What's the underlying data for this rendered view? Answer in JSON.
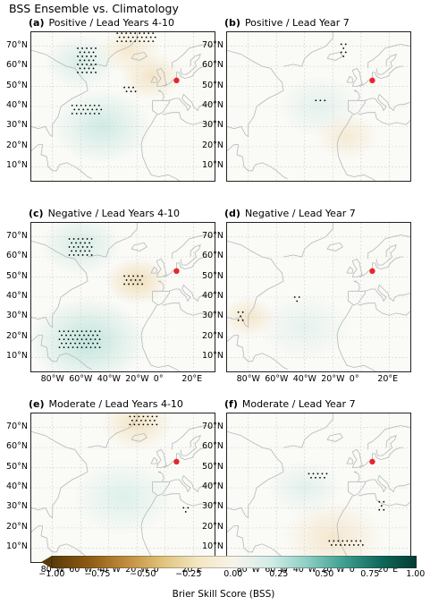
{
  "title": "BSS Ensemble vs. Climatology",
  "marker_color": "#e8252b",
  "panels": [
    {
      "id": "a",
      "letter": "(a)",
      "text": "Positive / Lead Years 4-10",
      "show_lon": false,
      "patches": [
        {
          "lon": -45,
          "lat": 30,
          "r": 22,
          "c": "#cde9e4"
        },
        {
          "lon": -10,
          "lat": 55,
          "r": 14,
          "c": "#f3e3c4"
        },
        {
          "lon": -60,
          "lat": 62,
          "r": 16,
          "c": "#d6ece7"
        },
        {
          "lon": -25,
          "lat": 68,
          "r": 14,
          "c": "#f5e8cc"
        }
      ],
      "dots": [
        {
          "lon": -55,
          "lat": 62,
          "w": 14,
          "h": 14
        },
        {
          "lon": -20,
          "lat": 74,
          "w": 28,
          "h": 5
        },
        {
          "lon": -25,
          "lat": 48,
          "w": 8,
          "h": 3
        },
        {
          "lon": -55,
          "lat": 38,
          "w": 22,
          "h": 5
        }
      ]
    },
    {
      "id": "b",
      "letter": "(b)",
      "text": "Positive / Lead Year 7",
      "show_lon": false,
      "patches": [
        {
          "lon": -30,
          "lat": 40,
          "r": 18,
          "c": "#e2f0ec"
        },
        {
          "lon": -10,
          "lat": 25,
          "r": 14,
          "c": "#f5e9d2"
        }
      ],
      "dots": [
        {
          "lon": -12,
          "lat": 67,
          "w": 4,
          "h": 8
        },
        {
          "lon": -28,
          "lat": 42,
          "w": 8,
          "h": 2
        }
      ]
    },
    {
      "id": "c",
      "letter": "(c)",
      "text": "Negative / Lead Years 4-10",
      "show_lon": true,
      "patches": [
        {
          "lon": -55,
          "lat": 18,
          "r": 26,
          "c": "#bfe3dc"
        },
        {
          "lon": -60,
          "lat": 66,
          "r": 18,
          "c": "#d4ebe5"
        },
        {
          "lon": -20,
          "lat": 48,
          "r": 14,
          "c": "#f0dcb6"
        }
      ],
      "dots": [
        {
          "lon": -60,
          "lat": 64,
          "w": 16,
          "h": 10
        },
        {
          "lon": -22,
          "lat": 48,
          "w": 14,
          "h": 5
        },
        {
          "lon": -60,
          "lat": 18,
          "w": 30,
          "h": 10
        }
      ]
    },
    {
      "id": "d",
      "letter": "(d)",
      "text": "Negative / Lead Year 7",
      "show_lon": true,
      "patches": [
        {
          "lon": -40,
          "lat": 25,
          "r": 20,
          "c": "#e5f1ee"
        },
        {
          "lon": -80,
          "lat": 30,
          "r": 12,
          "c": "#f3e4c8"
        }
      ],
      "dots": [
        {
          "lon": -85,
          "lat": 30,
          "w": 4,
          "h": 5
        },
        {
          "lon": -45,
          "lat": 38,
          "w": 4,
          "h": 4
        }
      ]
    },
    {
      "id": "e",
      "letter": "(e)",
      "text": "Moderate / Lead Years 4-10",
      "show_lon": false,
      "patches": [
        {
          "lon": -30,
          "lat": 35,
          "r": 22,
          "c": "#dbefea"
        },
        {
          "lon": -20,
          "lat": 72,
          "r": 16,
          "c": "#f3e2c0"
        }
      ],
      "dots": [
        {
          "lon": -15,
          "lat": 73,
          "w": 20,
          "h": 5
        },
        {
          "lon": 15,
          "lat": 28,
          "w": 4,
          "h": 4
        }
      ]
    },
    {
      "id": "f",
      "letter": "(f)",
      "text": "Moderate / Lead Year 7",
      "show_lon": false,
      "patches": [
        {
          "lon": -20,
          "lat": 15,
          "r": 22,
          "c": "#f4e6cc"
        },
        {
          "lon": -40,
          "lat": 40,
          "r": 16,
          "c": "#e0efec"
        }
      ],
      "dots": [
        {
          "lon": -30,
          "lat": 45,
          "w": 14,
          "h": 4
        },
        {
          "lon": -10,
          "lat": 12,
          "w": 25,
          "h": 3
        },
        {
          "lon": 15,
          "lat": 30,
          "w": 4,
          "h": 6
        }
      ]
    }
  ],
  "lat_ticks": [
    "70°N",
    "60°N",
    "50°N",
    "40°N",
    "30°N",
    "20°N",
    "10°N"
  ],
  "lat_values": [
    70,
    60,
    50,
    40,
    30,
    20,
    10
  ],
  "lon_ticks": [
    "80°W",
    "60°W",
    "40°W",
    "20°W",
    "0°",
    "20°E"
  ],
  "lon_values": [
    -80,
    -60,
    -40,
    -20,
    0,
    20
  ],
  "map_extent": {
    "lon_min": -95,
    "lon_max": 35,
    "lat_min": 3,
    "lat_max": 77
  },
  "marker": {
    "lon": 8,
    "lat": 53
  },
  "colorbar": {
    "ticks": [
      "−1.00",
      "−0.75",
      "−0.50",
      "−0.25",
      "0.00",
      "0.25",
      "0.50",
      "0.75",
      "1.00"
    ],
    "values": [
      -1,
      -0.75,
      -0.5,
      -0.25,
      0,
      0.25,
      0.5,
      0.75,
      1
    ],
    "label": "Brier Skill Score (BSS)",
    "stops": [
      "#5b3a07",
      "#8c5a14",
      "#bf8a3a",
      "#dfc17a",
      "#f3e6c2",
      "#f7f4ea",
      "#d2ece7",
      "#8ccfc3",
      "#3f9f90",
      "#0f6a5b",
      "#043b32"
    ]
  }
}
